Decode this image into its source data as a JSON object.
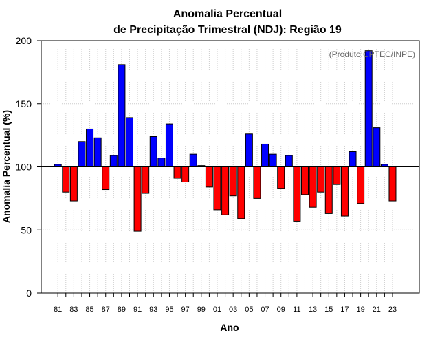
{
  "chart_data": {
    "type": "bar",
    "title": "Anomalia Percentual",
    "subtitle": "de Precipitação Trimestral (NDJ): Região 19",
    "xlabel": "Ano",
    "ylabel": "Anomalia Percentual (%)",
    "credit": "(Produto:CPTEC/INPE)",
    "ylim": [
      0,
      200
    ],
    "yticks": [
      0,
      50,
      100,
      150,
      200
    ],
    "baseline": 100,
    "colors": {
      "above": "#0000ff",
      "below": "#ff0000"
    },
    "categories": [
      "81",
      "82",
      "83",
      "84",
      "85",
      "86",
      "87",
      "88",
      "89",
      "90",
      "91",
      "92",
      "93",
      "94",
      "95",
      "96",
      "97",
      "98",
      "99",
      "00",
      "01",
      "02",
      "03",
      "04",
      "05",
      "06",
      "07",
      "08",
      "09",
      "10",
      "11",
      "12",
      "13",
      "14",
      "15",
      "16",
      "17",
      "18",
      "19",
      "20",
      "21",
      "22",
      "23"
    ],
    "tick_labels": [
      "81",
      "83",
      "85",
      "87",
      "89",
      "91",
      "93",
      "95",
      "97",
      "99",
      "01",
      "03",
      "05",
      "07",
      "09",
      "11",
      "13",
      "15",
      "17",
      "19",
      "21",
      "23"
    ],
    "values": [
      102,
      80,
      73,
      120,
      130,
      123,
      82,
      109,
      181,
      139,
      49,
      79,
      124,
      107,
      134,
      91,
      88,
      110,
      101,
      84,
      66,
      62,
      77,
      59,
      126,
      75,
      118,
      110,
      83,
      109,
      57,
      78,
      68,
      80,
      63,
      86,
      61,
      112,
      71,
      192,
      131,
      102,
      73
    ]
  }
}
